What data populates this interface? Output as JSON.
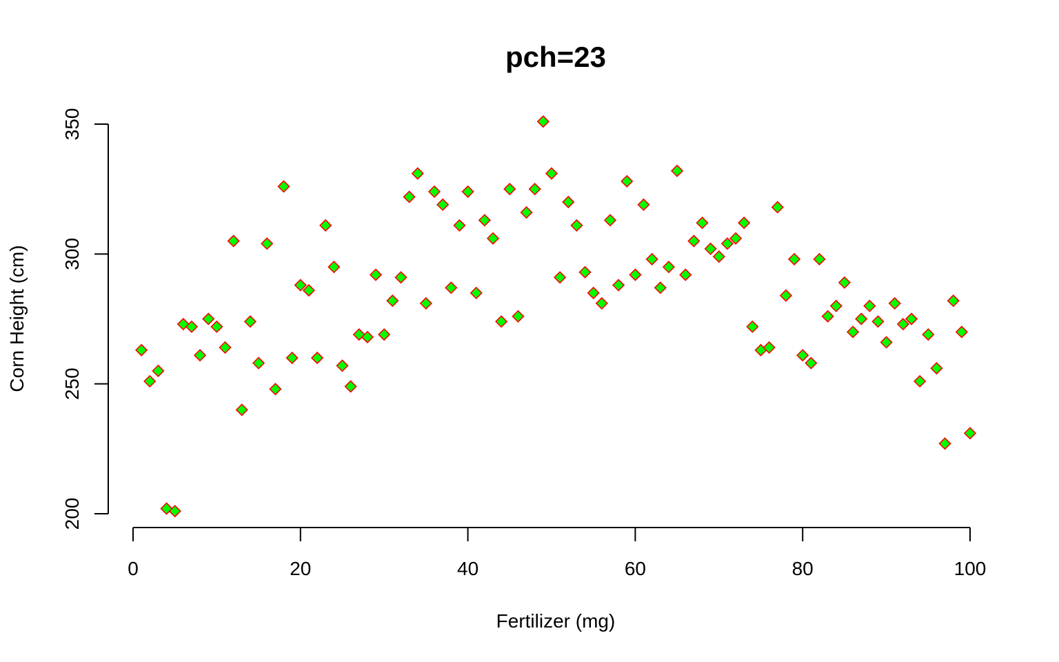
{
  "chart_data": {
    "type": "scatter",
    "title": "pch=23",
    "xlabel": "Fertilizer (mg)",
    "ylabel": "Corn Height (cm)",
    "xlim": [
      0,
      100
    ],
    "ylim": [
      200,
      350
    ],
    "xticks": [
      0,
      20,
      40,
      60,
      80,
      100
    ],
    "yticks": [
      200,
      250,
      300,
      350
    ],
    "grid": false,
    "marker": {
      "shape": "diamond",
      "fill": "#00ff00",
      "stroke": "#ff0000"
    },
    "x": [
      1,
      2,
      3,
      4,
      5,
      6,
      7,
      8,
      9,
      10,
      11,
      12,
      13,
      14,
      15,
      16,
      17,
      18,
      19,
      20,
      21,
      22,
      23,
      24,
      25,
      26,
      27,
      28,
      29,
      30,
      31,
      32,
      33,
      34,
      35,
      36,
      37,
      38,
      39,
      40,
      41,
      42,
      43,
      44,
      45,
      46,
      47,
      48,
      49,
      50,
      51,
      52,
      53,
      54,
      55,
      56,
      57,
      58,
      59,
      60,
      61,
      62,
      63,
      64,
      65,
      66,
      67,
      68,
      69,
      70,
      71,
      72,
      73,
      74,
      75,
      76,
      77,
      78,
      79,
      80,
      81,
      82,
      83,
      84,
      85,
      86,
      87,
      88,
      89,
      90,
      91,
      92,
      93,
      94,
      95,
      96,
      97,
      98,
      99,
      100
    ],
    "y": [
      263,
      251,
      255,
      202,
      201,
      273,
      272,
      261,
      275,
      272,
      264,
      305,
      240,
      274,
      258,
      304,
      248,
      326,
      260,
      288,
      286,
      260,
      311,
      295,
      257,
      249,
      269,
      268,
      292,
      269,
      282,
      291,
      322,
      331,
      281,
      324,
      319,
      287,
      311,
      324,
      285,
      313,
      306,
      274,
      325,
      276,
      316,
      325,
      351,
      331,
      291,
      320,
      311,
      293,
      285,
      281,
      313,
      288,
      328,
      292,
      319,
      298,
      287,
      295,
      332,
      292,
      305,
      312,
      302,
      299,
      304,
      306,
      312,
      272,
      263,
      264,
      318,
      284,
      298,
      261,
      258,
      298,
      276,
      280,
      289,
      270,
      275,
      280,
      274,
      266,
      281,
      273,
      275,
      251,
      269,
      256,
      227,
      282,
      270,
      231
    ]
  }
}
